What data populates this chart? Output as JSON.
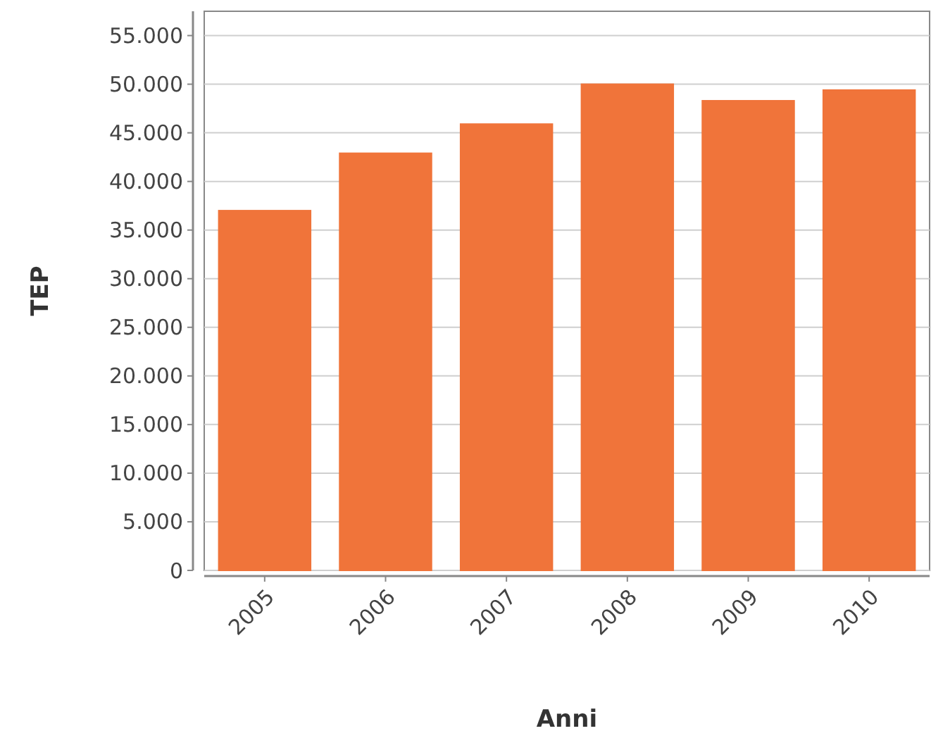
{
  "chart_data": {
    "type": "bar",
    "xlabel": "Anni",
    "ylabel": "TEP",
    "categories": [
      "2005",
      "2006",
      "2007",
      "2008",
      "2009",
      "2010"
    ],
    "values": [
      37000,
      42900,
      45900,
      50000,
      48300,
      49400
    ],
    "color": "#f0743a",
    "ylim": [
      0,
      57500
    ],
    "yticks": [
      {
        "value": 0,
        "label": "0"
      },
      {
        "value": 5000,
        "label": "5.000"
      },
      {
        "value": 10000,
        "label": "10.000"
      },
      {
        "value": 15000,
        "label": "15.000"
      },
      {
        "value": 20000,
        "label": "20.000"
      },
      {
        "value": 25000,
        "label": "25.000"
      },
      {
        "value": 30000,
        "label": "30.000"
      },
      {
        "value": 35000,
        "label": "35.000"
      },
      {
        "value": 40000,
        "label": "40.000"
      },
      {
        "value": 45000,
        "label": "45.000"
      },
      {
        "value": 50000,
        "label": "50.000"
      },
      {
        "value": 55000,
        "label": "55.000"
      }
    ],
    "grid": "y"
  }
}
